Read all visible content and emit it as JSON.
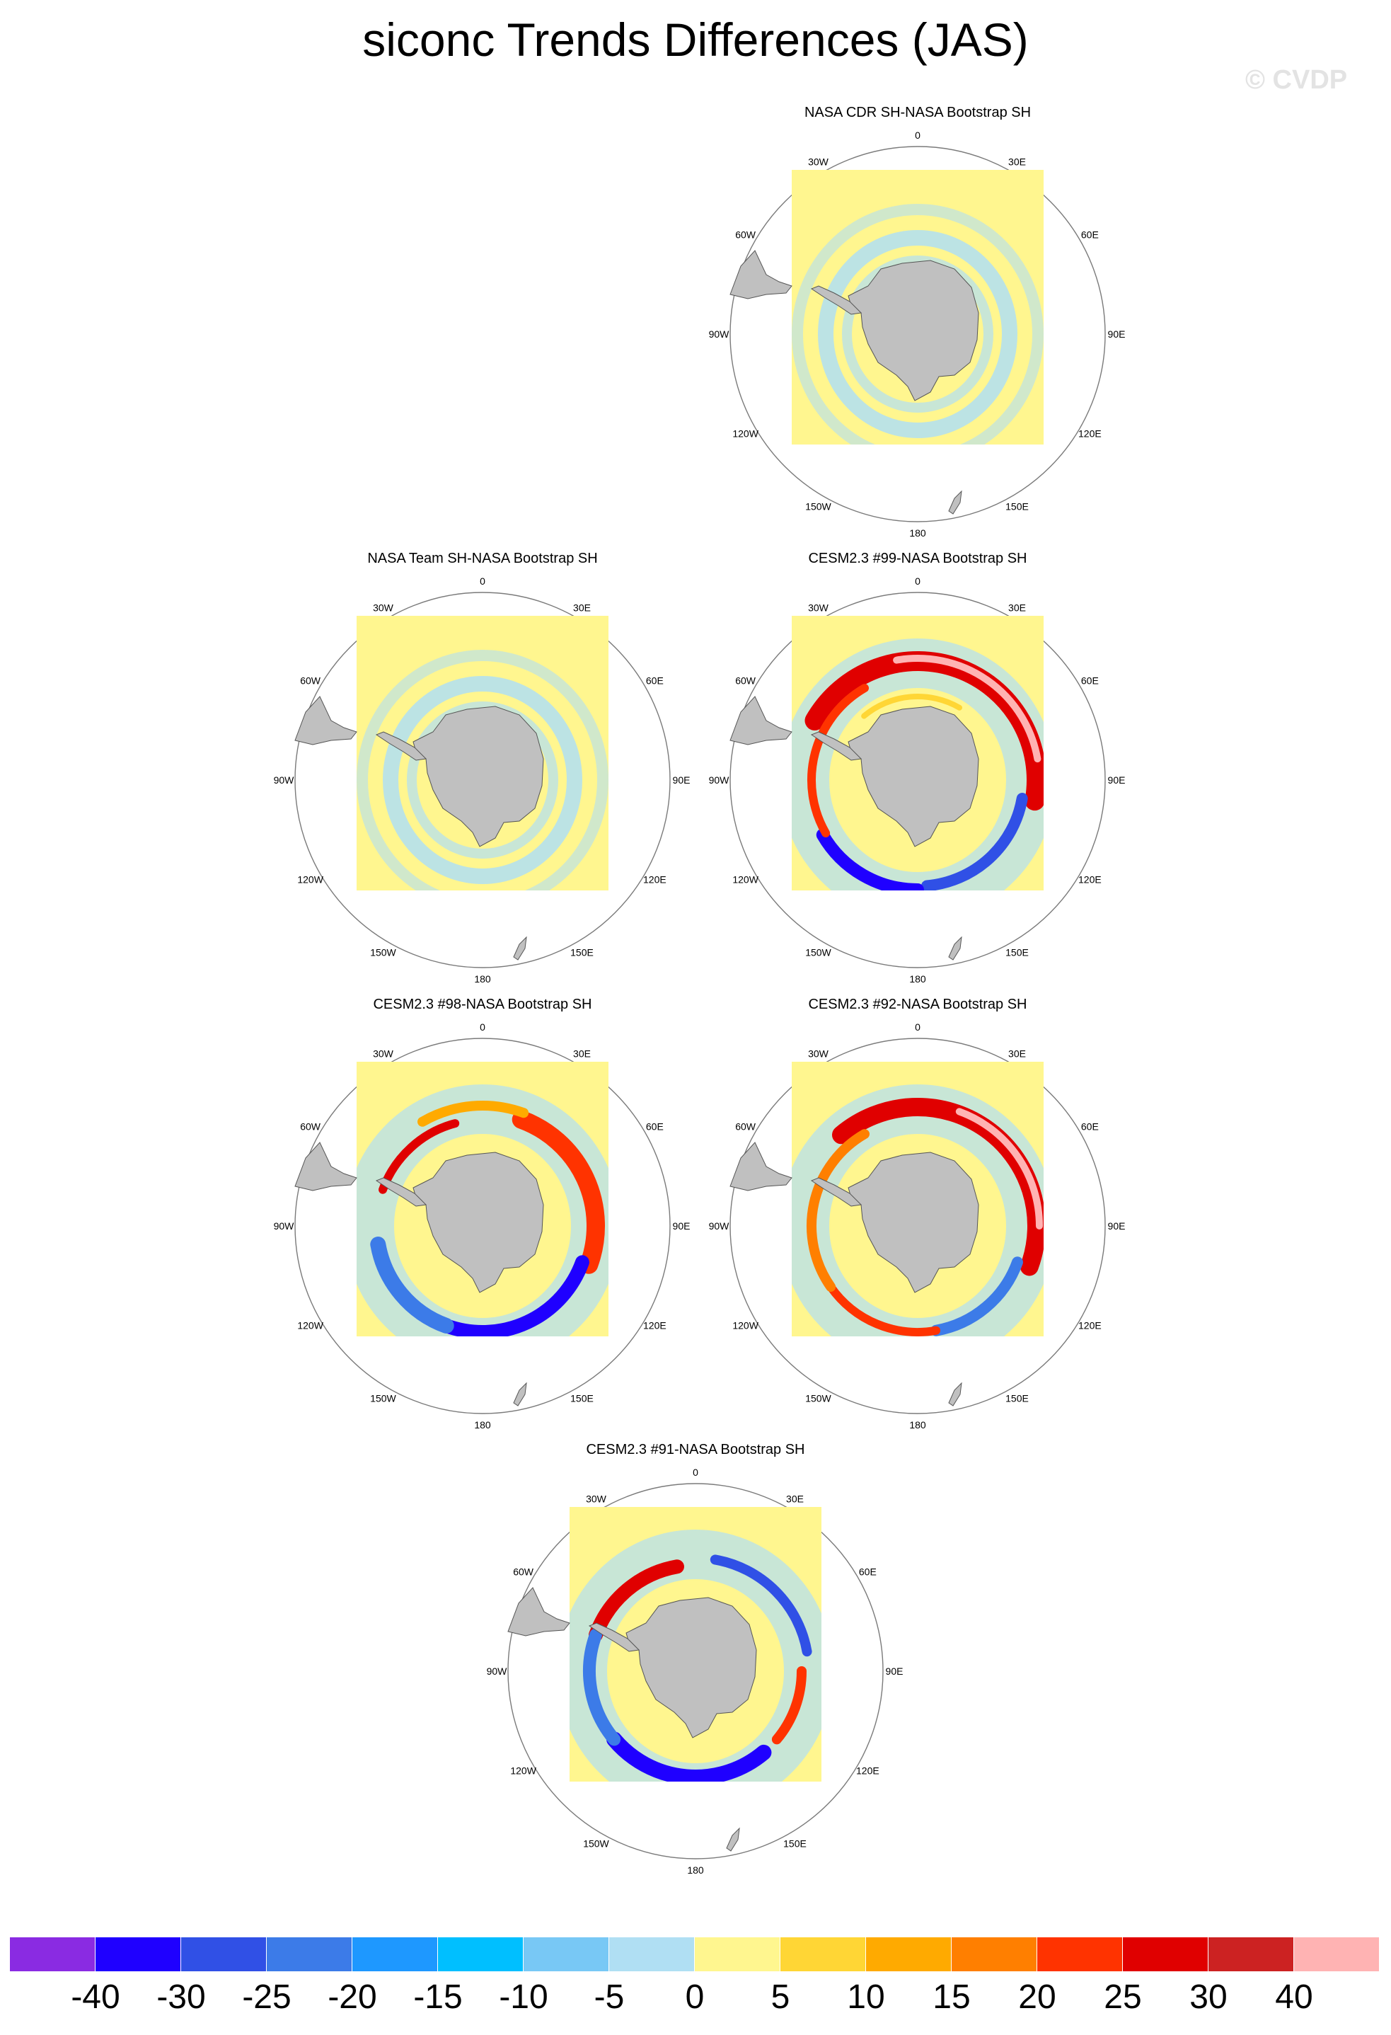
{
  "title": "siconc Trends Differences (JAS)",
  "watermark": "© CVDP",
  "panels": [
    {
      "id": "p1",
      "title": "NASA CDR SH-NASA Bootstrap SH",
      "variant": "light"
    },
    {
      "id": "p2",
      "title": "NASA Team SH-NASA Bootstrap SH",
      "variant": "light"
    },
    {
      "id": "p3",
      "title": "CESM2.3 #99-NASA Bootstrap SH",
      "variant": "strong"
    },
    {
      "id": "p4",
      "title": "CESM2.3 #98-NASA Bootstrap SH",
      "variant": "strong"
    },
    {
      "id": "p5",
      "title": "CESM2.3 #92-NASA Bootstrap SH",
      "variant": "strong"
    },
    {
      "id": "p6",
      "title": "CESM2.3 #91-NASA Bootstrap SH",
      "variant": "strong"
    }
  ],
  "lon_labels": [
    {
      "text": "0",
      "angle": 0
    },
    {
      "text": "30E",
      "angle": 30
    },
    {
      "text": "60E",
      "angle": 60
    },
    {
      "text": "90E",
      "angle": 90
    },
    {
      "text": "120E",
      "angle": 120
    },
    {
      "text": "150E",
      "angle": 150
    },
    {
      "text": "180",
      "angle": 180
    },
    {
      "text": "150W",
      "angle": 210
    },
    {
      "text": "120W",
      "angle": 240
    },
    {
      "text": "90W",
      "angle": 270
    },
    {
      "text": "60W",
      "angle": 300
    },
    {
      "text": "30W",
      "angle": 330
    }
  ],
  "colorbar": {
    "colors": [
      "#8a2be2",
      "#1f00ff",
      "#3050e6",
      "#3c7be8",
      "#1e98ff",
      "#00bfff",
      "#78c8f5",
      "#b0dff3",
      "#fff68f",
      "#ffd635",
      "#ffaa00",
      "#ff7f00",
      "#ff3300",
      "#e00000",
      "#cc2222",
      "#ffb3b3"
    ],
    "labels": [
      "-40",
      "-30",
      "-25",
      "-20",
      "-15",
      "-10",
      "-5",
      "0",
      "5",
      "10",
      "15",
      "20",
      "25",
      "30",
      "40"
    ]
  },
  "style": {
    "yellow": "#fff68f",
    "light_blue": "#b0dff3",
    "land": "#c0c0c0"
  }
}
